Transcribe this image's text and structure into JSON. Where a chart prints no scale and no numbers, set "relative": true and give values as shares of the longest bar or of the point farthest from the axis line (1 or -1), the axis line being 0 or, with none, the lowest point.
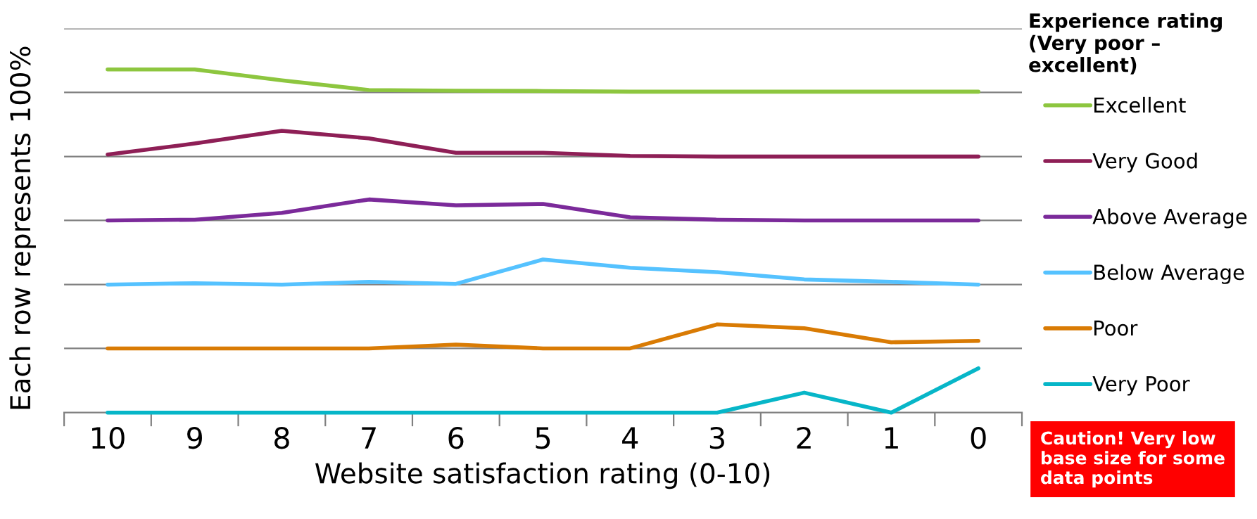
{
  "chart_data": {
    "type": "line",
    "relative": true,
    "xlabel": "Website satisfaction rating (0-10)",
    "ylabel": "Each row represents 100%",
    "legend_title": "Experience rating (Very poor – excellent)",
    "legend": "right",
    "grid": false,
    "line_style": "solid",
    "marker": "none",
    "categories": [
      "10",
      "9",
      "8",
      "7",
      "6",
      "5",
      "4",
      "3",
      "2",
      "1",
      "0"
    ],
    "series": [
      {
        "name": "Excellent",
        "color": "#8dc63f",
        "values": [
          1.0,
          1.0,
          0.968,
          0.94,
          0.938,
          0.937,
          0.935,
          0.935,
          0.935,
          0.935,
          0.935
        ]
      },
      {
        "name": "Very Good",
        "color": "#8e1f56",
        "values": [
          0.752,
          0.784,
          0.821,
          0.799,
          0.757,
          0.757,
          0.748,
          0.746,
          0.746,
          0.746,
          0.746
        ]
      },
      {
        "name": "Above Average",
        "color": "#7b2a9a",
        "values": [
          0.56,
          0.562,
          0.582,
          0.621,
          0.604,
          0.608,
          0.569,
          0.562,
          0.56,
          0.56,
          0.56
        ]
      },
      {
        "name": "Below Average",
        "color": "#55c2ff",
        "values": [
          0.373,
          0.377,
          0.373,
          0.381,
          0.375,
          0.446,
          0.422,
          0.409,
          0.388,
          0.381,
          0.373
        ]
      },
      {
        "name": "Poor",
        "color": "#d97b04",
        "values": [
          0.187,
          0.187,
          0.187,
          0.187,
          0.198,
          0.187,
          0.187,
          0.257,
          0.246,
          0.205,
          0.209
        ]
      },
      {
        "name": "Very Poor",
        "color": "#07b6c8",
        "values": [
          0,
          0,
          0,
          0,
          0,
          0,
          0,
          0,
          0.058,
          0,
          0.129
        ]
      }
    ],
    "ref_lines": [
      {
        "axis": "y",
        "value": 0.187,
        "color": "#808080"
      },
      {
        "axis": "y",
        "value": 0.373,
        "color": "#808080"
      },
      {
        "axis": "y",
        "value": 0.56,
        "color": "#808080"
      },
      {
        "axis": "y",
        "value": 0.746,
        "color": "#808080"
      },
      {
        "axis": "y",
        "value": 0.933,
        "color": "#808080"
      },
      {
        "axis": "y",
        "value": 1.119,
        "color": "#808080"
      }
    ],
    "annotations": [
      "Caution! Very low base size for some data points"
    ]
  }
}
